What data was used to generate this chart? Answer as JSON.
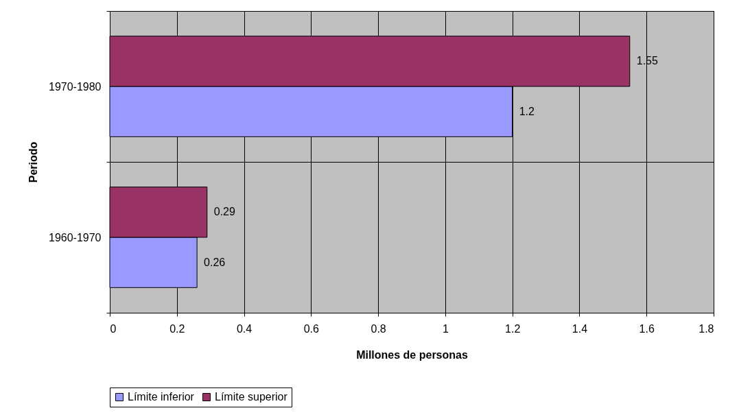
{
  "chart_data": {
    "type": "bar",
    "orientation": "horizontal",
    "xlabel": "Millones de personas",
    "ylabel": "Periodo",
    "categories": [
      "1970-1980",
      "1960-1970"
    ],
    "series": [
      {
        "name": "Límite inferior",
        "color": "#9999ff",
        "values": [
          1.2,
          0.26
        ]
      },
      {
        "name": "Límite superior",
        "color": "#993366",
        "values": [
          1.55,
          0.29
        ]
      }
    ],
    "xlim": [
      0,
      1.8
    ],
    "xticks": [
      0,
      0.2,
      0.4,
      0.6,
      0.8,
      1,
      1.2,
      1.4,
      1.6,
      1.8
    ],
    "grid": true,
    "legend": "bottom",
    "data_labels": true
  }
}
